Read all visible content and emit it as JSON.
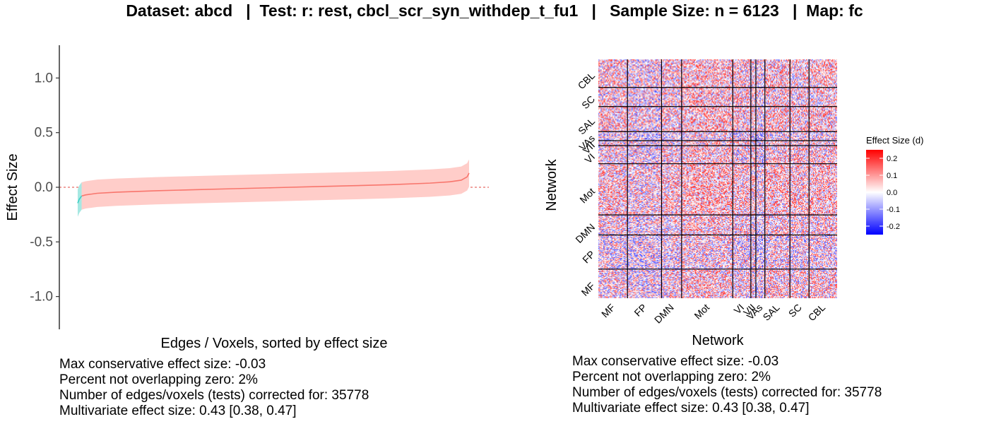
{
  "title": "Dataset: abcd   |  Test: r: rest, cbcl_scr_syn_withdep_t_fu1   |   Sample Size: n = 6123   |  Map: fc",
  "chart_data": [
    {
      "type": "line",
      "xlabel": "Edges / Voxels, sorted by effect size",
      "ylabel": "Effect Size",
      "ylim": [
        -1.3,
        1.3
      ],
      "yticks": [
        -1.0,
        -0.5,
        0.0,
        0.5,
        1.0
      ],
      "ytick_labels": [
        "-1.0",
        "-0.5",
        "0.0",
        "0.5",
        "1.0"
      ],
      "reference_line": {
        "y": 0,
        "style": "dashed",
        "color": "#e0463c"
      },
      "series": [
        {
          "segment": "overlapping zero",
          "color": "#f8766d",
          "ribbon_color": "#ffcdc9"
        },
        {
          "segment": "not overlapping zero",
          "color": "#3ed0c6",
          "ribbon_color": "#a6e8e2"
        }
      ],
      "curve": {
        "x": [
          0,
          0.004,
          0.01,
          0.02,
          0.05,
          0.1,
          0.2,
          0.3,
          0.4,
          0.5,
          0.6,
          0.7,
          0.8,
          0.9,
          0.95,
          0.98,
          0.995,
          1.0
        ],
        "y": [
          -0.145,
          -0.11,
          -0.08,
          -0.07,
          -0.055,
          -0.045,
          -0.032,
          -0.022,
          -0.013,
          -0.004,
          0.005,
          0.014,
          0.024,
          0.038,
          0.05,
          0.065,
          0.095,
          0.13
        ],
        "lower": [
          -0.27,
          -0.235,
          -0.205,
          -0.195,
          -0.18,
          -0.17,
          -0.157,
          -0.147,
          -0.138,
          -0.129,
          -0.12,
          -0.111,
          -0.101,
          -0.087,
          -0.075,
          -0.06,
          -0.03,
          0.005
        ],
        "upper": [
          -0.02,
          0.015,
          0.045,
          0.055,
          0.07,
          0.08,
          0.093,
          0.103,
          0.112,
          0.121,
          0.13,
          0.139,
          0.149,
          0.163,
          0.175,
          0.19,
          0.22,
          0.255
        ]
      },
      "stats": [
        "Max conservative effect size: -0.03",
        "Percent not overlapping zero: 2%",
        "Number of edges/voxels (tests) corrected for: 35778",
        "Multivariate effect size: 0.43 [0.38, 0.47]"
      ]
    },
    {
      "type": "heatmap",
      "xlabel": "Network",
      "ylabel": "Network",
      "networks": [
        "MF",
        "FP",
        "DMN",
        "Mot",
        "VI",
        "VII",
        "VAs",
        "SAL",
        "SC",
        "CBL"
      ],
      "network_sizes": [
        29,
        34,
        20,
        51,
        18,
        5,
        9,
        25,
        19,
        28
      ],
      "legend": {
        "title": "Effect Size (d)",
        "ticks": [
          0.2,
          0.1,
          0.0,
          -0.1,
          -0.2
        ],
        "tick_labels": [
          "0.2",
          "0.1",
          "0.0",
          "-0.1",
          "-0.2"
        ],
        "range": [
          -0.25,
          0.25
        ],
        "colors": {
          "low": "#0000ff",
          "mid": "#ffffff",
          "high": "#ff0000"
        }
      },
      "stats": [
        "Max conservative effect size: -0.03",
        "Percent not overlapping zero: 2%",
        "Number of edges/voxels (tests) corrected for: 35778",
        "Multivariate effect size: 0.43 [0.38, 0.47]"
      ]
    }
  ]
}
